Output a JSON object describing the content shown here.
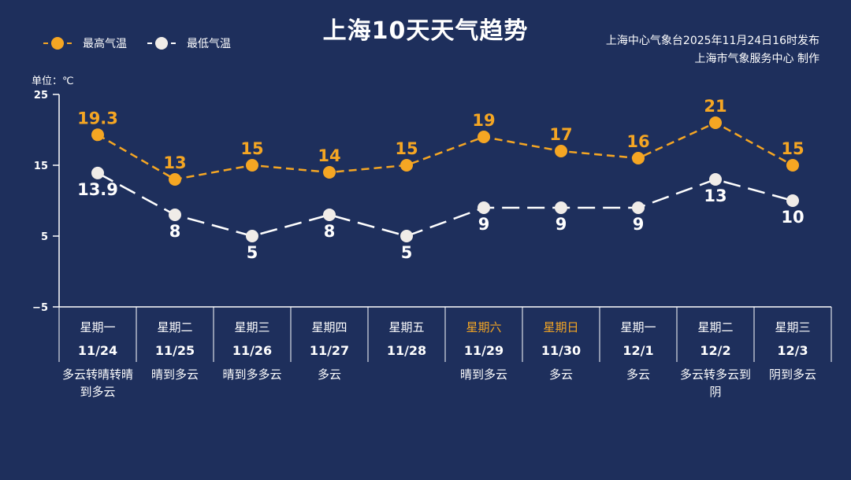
{
  "title": "上海10天天气趋势",
  "source": {
    "line1": "上海中心气象台2025年11月24日16时发布",
    "line2": "上海市气象服务中心 制作"
  },
  "unit_label": "单位：℃",
  "colors": {
    "background": "#1e2f5c",
    "high": "#f5a623",
    "low": "#ffffff",
    "weekend": "#f5a623"
  },
  "chart_data": {
    "type": "line",
    "title": "上海10天天气趋势",
    "ylabel": "单位：℃",
    "ylim": [
      -5,
      25
    ],
    "yticks": [
      25,
      15,
      5,
      -5
    ],
    "grid": false,
    "legend_position": "top-left",
    "categories": [
      "11/24",
      "11/25",
      "11/26",
      "11/27",
      "11/28",
      "11/29",
      "11/30",
      "12/1",
      "12/2",
      "12/3"
    ],
    "weekdays": [
      "星期一",
      "星期二",
      "星期三",
      "星期四",
      "星期五",
      "星期六",
      "星期日",
      "星期一",
      "星期二",
      "星期三"
    ],
    "weekend_flags": [
      false,
      false,
      false,
      false,
      false,
      true,
      true,
      false,
      false,
      false
    ],
    "weather": [
      "多云转晴转晴到多云",
      "晴到多云",
      "晴到多多云",
      "多云",
      "",
      "晴到多云",
      "多云",
      "多云",
      "多云转多云到阴",
      "阴到多云"
    ],
    "series": [
      {
        "name": "最高气温",
        "values": [
          19.3,
          13,
          15,
          14,
          15,
          19,
          17,
          16,
          21,
          15
        ],
        "labels": [
          "19.3",
          "13",
          "15",
          "14",
          "15",
          "19",
          "17",
          "16",
          "21",
          "15"
        ]
      },
      {
        "name": "最低气温",
        "values": [
          13.9,
          8,
          5,
          8,
          5,
          9,
          9,
          9,
          13,
          10
        ],
        "labels": [
          "13.9",
          "8",
          "5",
          "8",
          "5",
          "9",
          "9",
          "9",
          "13",
          "10"
        ]
      }
    ]
  }
}
